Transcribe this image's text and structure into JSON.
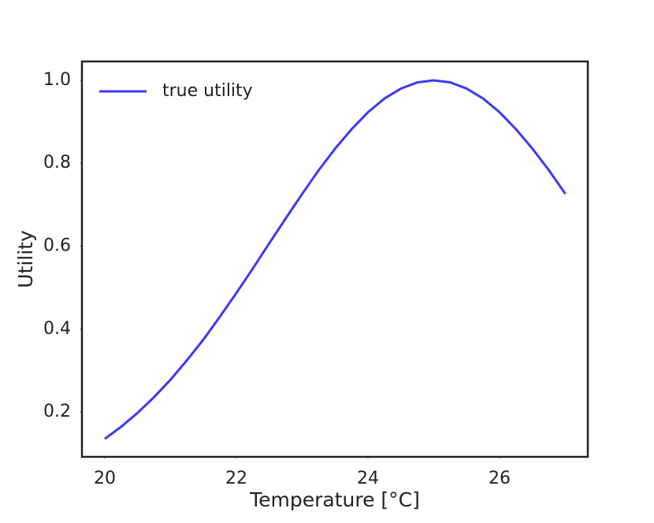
{
  "chart_data": {
    "type": "line",
    "xlabel": "Temperature [°C]",
    "ylabel": "Utility",
    "x": [
      20,
      20.25,
      20.5,
      20.75,
      21,
      21.25,
      21.5,
      21.75,
      22,
      22.25,
      22.5,
      22.75,
      23,
      23.25,
      23.5,
      23.75,
      24,
      24.25,
      24.5,
      24.75,
      25,
      25.25,
      25.5,
      25.75,
      26,
      26.25,
      26.5,
      26.75,
      27
    ],
    "series": [
      {
        "name": "true utility",
        "color": "#3a3af5",
        "values": [
          0.135,
          0.1645,
          0.198,
          0.236,
          0.278,
          0.325,
          0.375,
          0.43,
          0.487,
          0.546,
          0.607,
          0.667,
          0.726,
          0.783,
          0.835,
          0.882,
          0.923,
          0.956,
          0.98,
          0.995,
          1,
          0.995,
          0.98,
          0.956,
          0.923,
          0.882,
          0.835,
          0.783,
          0.726
        ]
      }
    ],
    "xlim": [
      19.653,
      27.341
    ],
    "ylim": [
      0.0917,
      1.0456
    ],
    "xticks": [
      20,
      22,
      24,
      26
    ],
    "yticks": [
      0.2,
      0.4,
      0.6,
      0.8,
      {
        "value": 1,
        "label": "1.0"
      }
    ],
    "legend": "upper left",
    "grid": false
  }
}
